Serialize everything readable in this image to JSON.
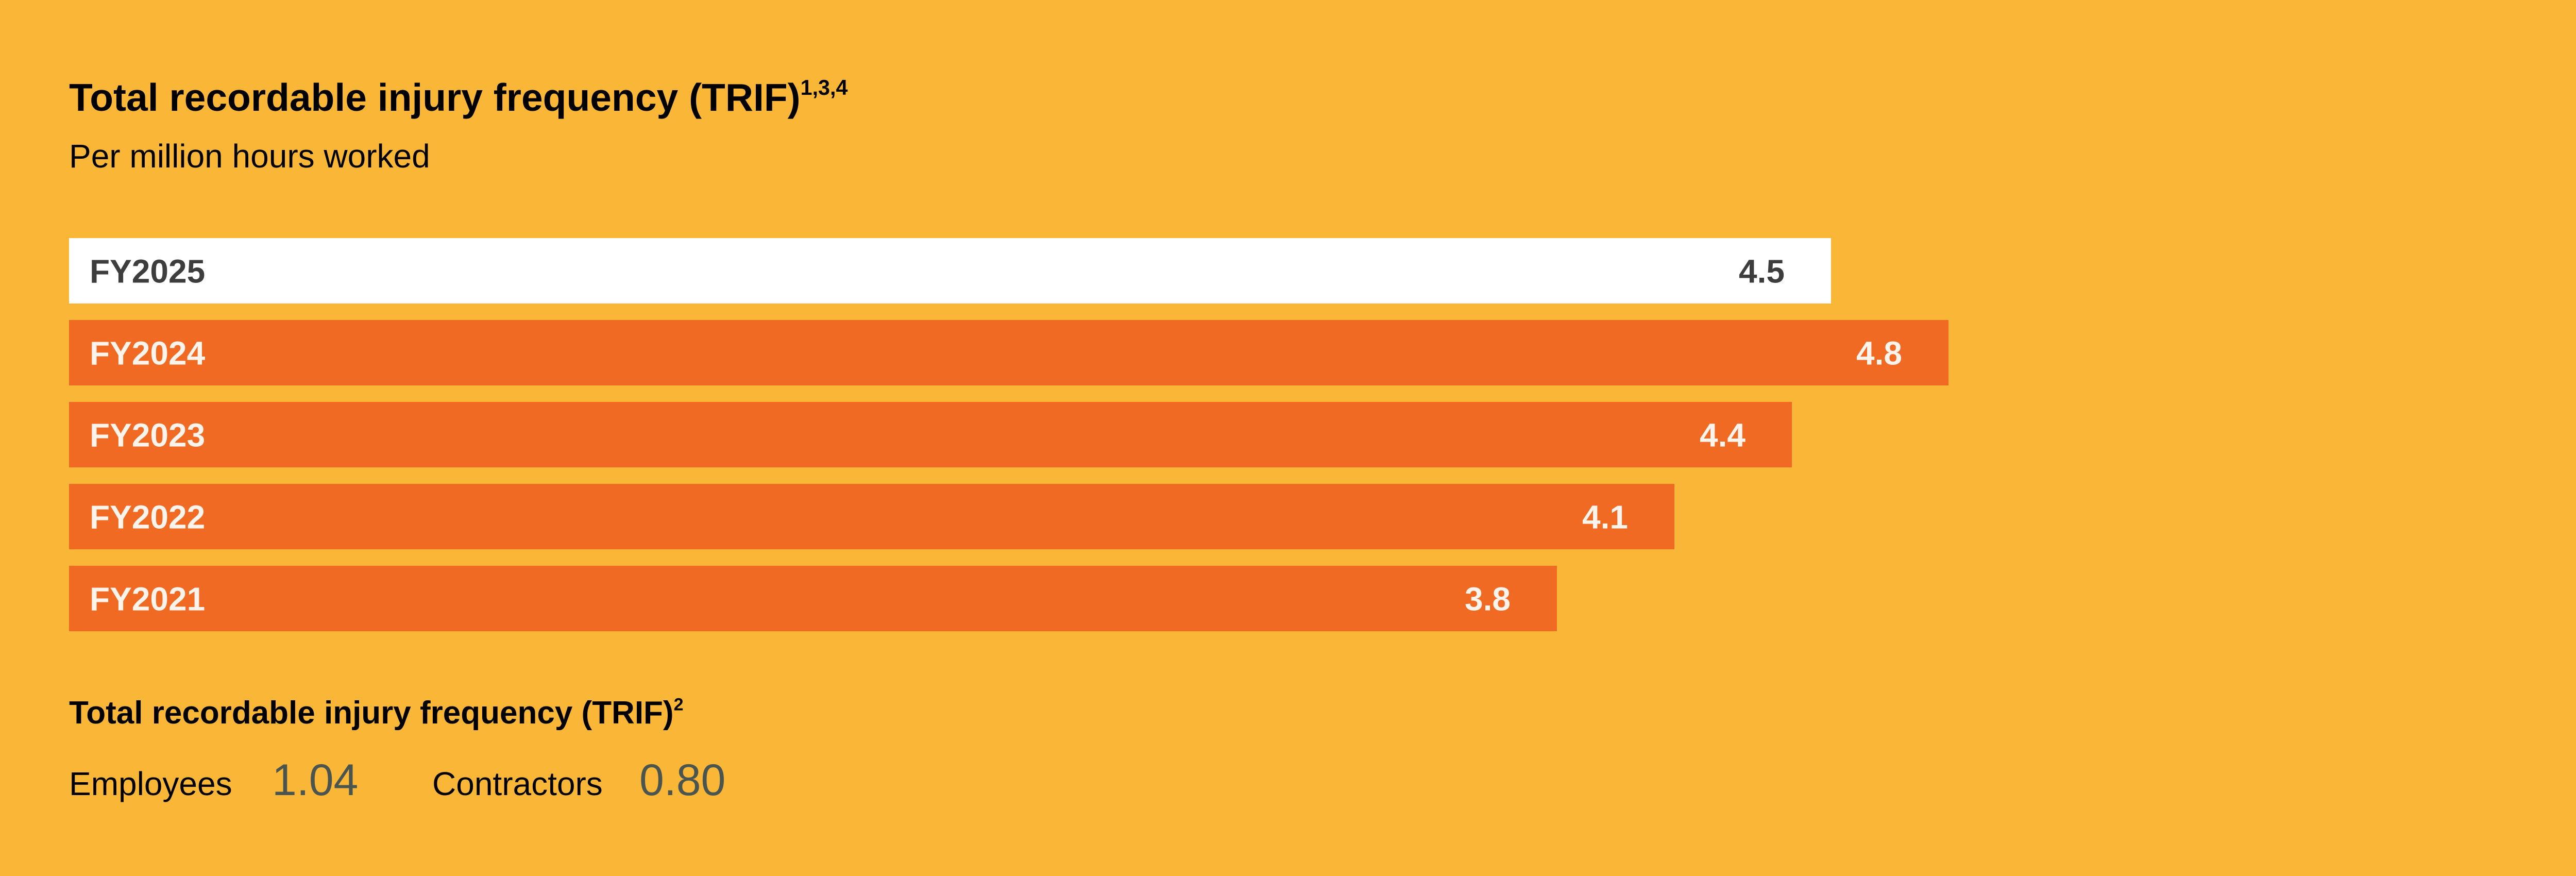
{
  "colors": {
    "background": "#F9B637",
    "bar": "#F06A24",
    "highlight_bar": "#FFFFFF",
    "highlight_text": "#3D3D3D",
    "bar_text": "#FFF4EC",
    "stat_value": "#4A5550"
  },
  "chart_data": {
    "type": "bar",
    "orientation": "horizontal",
    "title": "Total recordable injury frequency (TRIF)",
    "title_superscript": "1,3,4",
    "subtitle": "Per million hours worked",
    "categories": [
      "FY2025",
      "FY2024",
      "FY2023",
      "FY2022",
      "FY2021"
    ],
    "values": [
      4.5,
      4.8,
      4.4,
      4.1,
      3.8
    ],
    "value_labels": [
      "4.5",
      "4.8",
      "4.4",
      "4.1",
      "3.8"
    ],
    "highlighted": "FY2025",
    "xlim": [
      0,
      4.8
    ],
    "grid": false
  },
  "secondary": {
    "heading": "Total recordable injury frequency (TRIF)",
    "heading_superscript": "2",
    "employees_label": "Employees",
    "employees_value": "1.04",
    "contractors_label": "Contractors",
    "contractors_value": "0.80"
  }
}
